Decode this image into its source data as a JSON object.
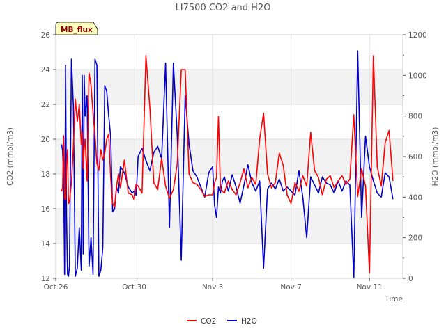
{
  "chart_data": {
    "type": "line",
    "title": "LI7500 CO2 and H2O",
    "xlabel": "Time",
    "ylabel_left": "CO2 (mmol/m3)",
    "ylabel_right": "H2O (mmol/m3)",
    "badge": "MB_flux",
    "x_unit": "days since Oct 26",
    "xlim": [
      0,
      17.7
    ],
    "ylim_left": [
      12,
      26
    ],
    "ylim_right": [
      0,
      1200
    ],
    "x_ticks": [
      {
        "value": 0,
        "label": "Oct 26"
      },
      {
        "value": 4,
        "label": "Oct 30"
      },
      {
        "value": 8,
        "label": "Nov 3"
      },
      {
        "value": 12,
        "label": "Nov 7"
      },
      {
        "value": 16,
        "label": "Nov 11"
      }
    ],
    "y_ticks_left": [
      12,
      14,
      16,
      18,
      20,
      22,
      24,
      26
    ],
    "y_ticks_right": [
      0,
      200,
      400,
      600,
      800,
      1000,
      1200
    ],
    "grid": true,
    "legend": "bottom",
    "colors": {
      "CO2": "#ff0000",
      "H2O": "#0000cc",
      "band": "#f2f2f2",
      "badge_fill": "#ffffc0"
    },
    "series": [
      {
        "name": "CO2",
        "axis": "left",
        "x": [
          0.3,
          0.35,
          0.4,
          0.45,
          0.5,
          0.55,
          0.6,
          0.65,
          0.7,
          0.8,
          0.9,
          1.0,
          1.1,
          1.2,
          1.3,
          1.35,
          1.4,
          1.45,
          1.5,
          1.6,
          1.7,
          1.8,
          1.9,
          2.0,
          2.1,
          2.2,
          2.3,
          2.4,
          2.5,
          2.6,
          2.7,
          2.8,
          2.9,
          3.0,
          3.1,
          3.2,
          3.3,
          3.5,
          3.7,
          3.9,
          4.0,
          4.1,
          4.2,
          4.4,
          4.6,
          4.8,
          5.0,
          5.2,
          5.4,
          5.6,
          5.8,
          6.0,
          6.2,
          6.4,
          6.6,
          6.8,
          7.0,
          7.2,
          7.4,
          7.6,
          7.8,
          8.0,
          8.1,
          8.2,
          8.3,
          8.4,
          8.5,
          8.6,
          8.8,
          9.0,
          9.2,
          9.4,
          9.6,
          9.8,
          10.0,
          10.2,
          10.4,
          10.6,
          10.8,
          11.0,
          11.2,
          11.4,
          11.6,
          11.8,
          12.0,
          12.2,
          12.4,
          12.6,
          12.8,
          13.0,
          13.2,
          13.4,
          13.6,
          13.8,
          14.0,
          14.2,
          14.4,
          14.6,
          14.8,
          15.0,
          15.2,
          15.4,
          15.6,
          15.8,
          16.0,
          16.2,
          16.4,
          16.6,
          16.8,
          17.0,
          17.2
        ],
        "y": [
          17.0,
          17.2,
          20.2,
          16.6,
          16.5,
          18.6,
          19.4,
          16.3,
          16.4,
          17.5,
          19.5,
          22.3,
          21.0,
          22.0,
          19.7,
          20.4,
          18.3,
          19.5,
          20.0,
          17.6,
          23.8,
          23.1,
          21.5,
          20.2,
          18.6,
          18.2,
          19.4,
          18.8,
          19.2,
          20.0,
          20.3,
          17.8,
          16.3,
          16.1,
          17.3,
          18.0,
          17.2,
          18.8,
          16.9,
          16.8,
          16.5,
          17.4,
          17.3,
          16.9,
          24.8,
          21.8,
          17.5,
          17.1,
          18.9,
          17.3,
          16.6,
          17.1,
          18.6,
          24.0,
          24.0,
          18.0,
          17.5,
          17.4,
          17.1,
          16.7,
          16.8,
          16.8,
          17.5,
          17.8,
          21.3,
          17.2,
          17.0,
          16.9,
          17.6,
          17.1,
          16.8,
          17.5,
          18.3,
          17.2,
          17.8,
          17.4,
          20.0,
          21.5,
          18.0,
          17.2,
          17.5,
          19.2,
          18.5,
          16.8,
          16.3,
          17.5,
          17.0,
          17.9,
          17.3,
          20.4,
          18.2,
          17.8,
          16.8,
          17.7,
          17.9,
          17.2,
          17.6,
          17.9,
          17.4,
          17.7,
          21.4,
          16.7,
          18.3,
          17.3,
          12.3,
          24.8,
          18.4,
          17.3,
          19.8,
          20.5,
          17.6
        ]
      },
      {
        "name": "H2O",
        "axis": "right",
        "x": [
          0.3,
          0.35,
          0.4,
          0.45,
          0.5,
          0.55,
          0.6,
          0.65,
          0.7,
          0.8,
          0.9,
          1.0,
          1.1,
          1.2,
          1.3,
          1.35,
          1.4,
          1.45,
          1.5,
          1.6,
          1.7,
          1.8,
          1.9,
          2.0,
          2.1,
          2.2,
          2.3,
          2.4,
          2.5,
          2.6,
          2.7,
          2.8,
          2.9,
          3.0,
          3.1,
          3.2,
          3.3,
          3.5,
          3.7,
          3.9,
          4.0,
          4.1,
          4.2,
          4.4,
          4.6,
          4.8,
          5.0,
          5.2,
          5.4,
          5.6,
          5.8,
          6.0,
          6.2,
          6.4,
          6.6,
          6.8,
          7.0,
          7.2,
          7.4,
          7.6,
          7.8,
          8.0,
          8.1,
          8.2,
          8.3,
          8.4,
          8.5,
          8.6,
          8.8,
          9.0,
          9.2,
          9.4,
          9.6,
          9.8,
          10.0,
          10.2,
          10.4,
          10.6,
          10.8,
          11.0,
          11.2,
          11.4,
          11.6,
          11.8,
          12.0,
          12.2,
          12.4,
          12.6,
          12.8,
          13.0,
          13.2,
          13.4,
          13.6,
          13.8,
          14.0,
          14.2,
          14.4,
          14.6,
          14.8,
          15.0,
          15.2,
          15.4,
          15.6,
          15.8,
          16.0,
          16.2,
          16.4,
          16.6,
          16.8,
          17.0,
          17.2
        ],
        "y": [
          660,
          630,
          500,
          20,
          1050,
          300,
          20,
          10,
          60,
          1080,
          850,
          10,
          50,
          250,
          40,
          1000,
          120,
          1000,
          800,
          900,
          60,
          200,
          20,
          1080,
          1050,
          10,
          40,
          150,
          950,
          920,
          800,
          700,
          330,
          340,
          450,
          420,
          550,
          520,
          450,
          420,
          430,
          410,
          600,
          640,
          580,
          530,
          620,
          650,
          590,
          1060,
          250,
          1060,
          700,
          90,
          900,
          660,
          530,
          500,
          450,
          400,
          520,
          550,
          360,
          300,
          450,
          420,
          480,
          500,
          430,
          510,
          450,
          370,
          460,
          560,
          470,
          430,
          480,
          50,
          440,
          470,
          440,
          490,
          430,
          450,
          430,
          410,
          530,
          400,
          200,
          500,
          460,
          420,
          500,
          470,
          460,
          420,
          480,
          430,
          480,
          460,
          0,
          1120,
          300,
          700,
          550,
          480,
          420,
          400,
          520,
          500,
          390
        ]
      }
    ]
  }
}
